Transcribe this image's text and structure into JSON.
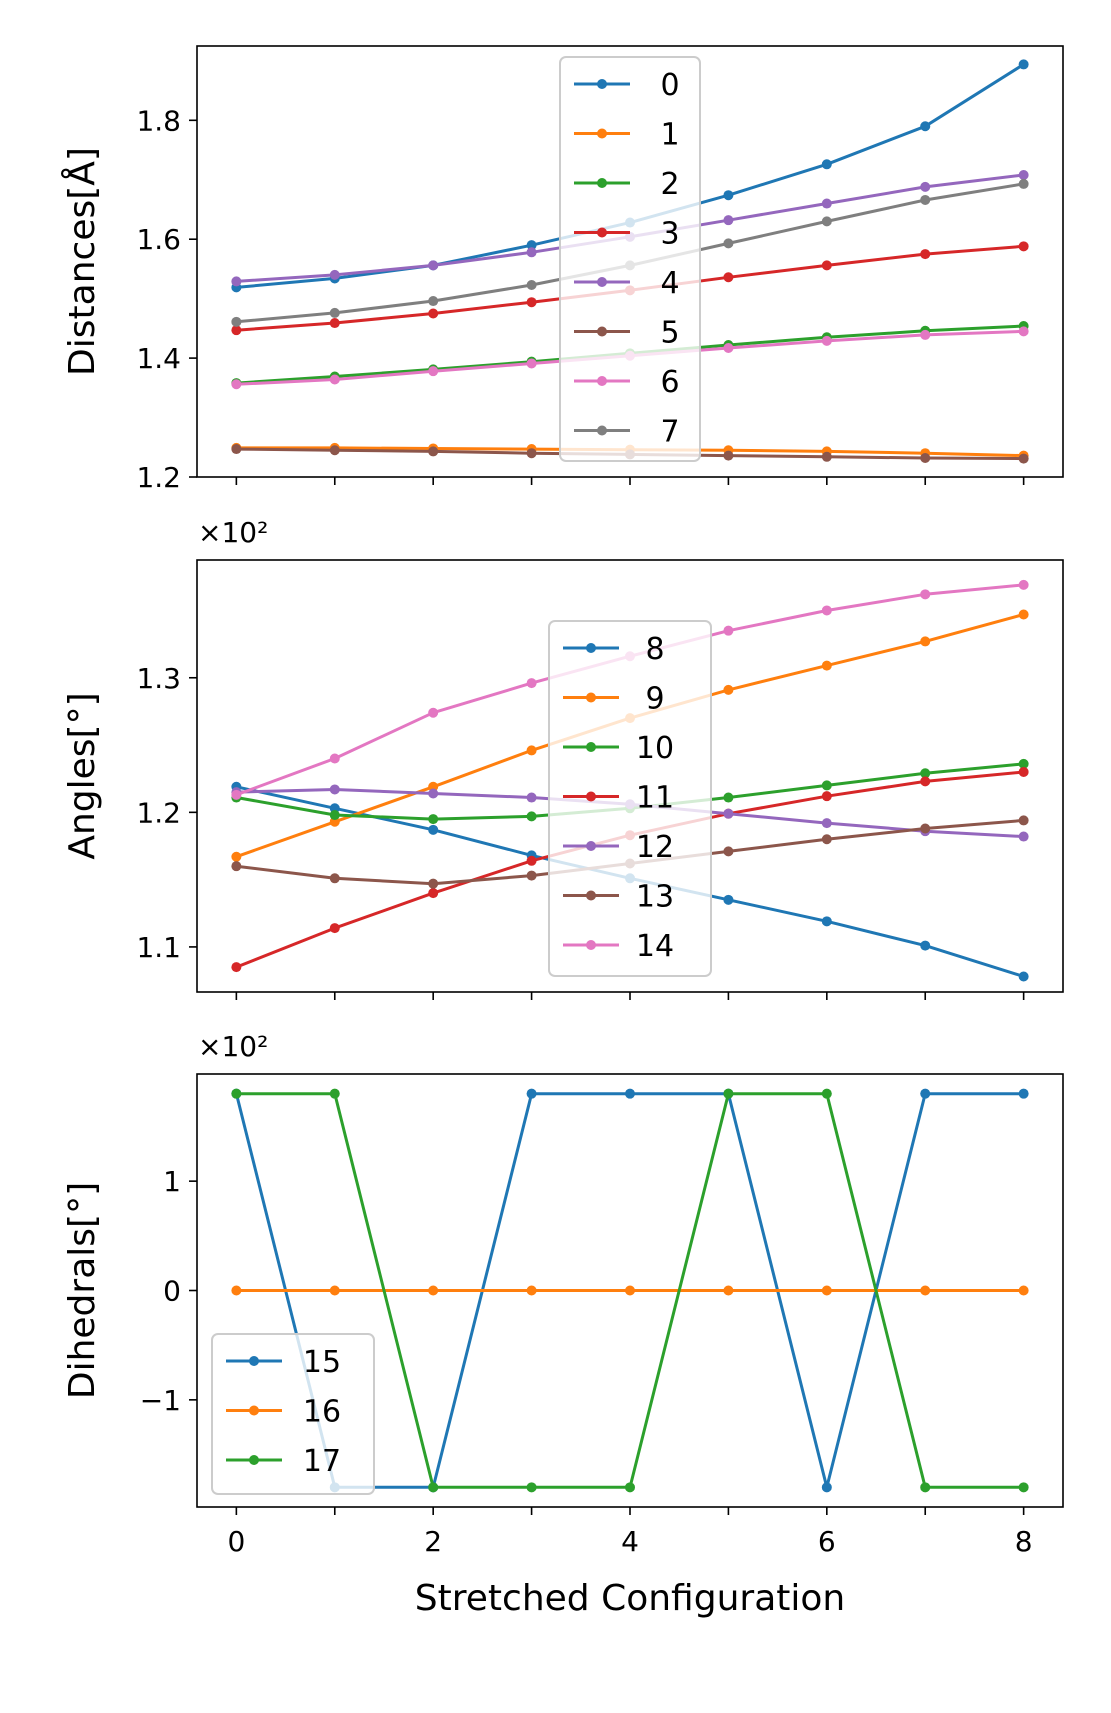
{
  "palette": [
    "#1f77b4",
    "#ff7f0e",
    "#2ca02c",
    "#d62728",
    "#9467bd",
    "#8c564b",
    "#e377c2",
    "#7f7f7f"
  ],
  "chart_data": [
    {
      "id": "distances",
      "type": "line",
      "title": "",
      "ylabel": "Distances[Å]",
      "xlabel": "",
      "scale_label": "",
      "x": [
        0,
        1,
        2,
        3,
        4,
        5,
        6,
        7,
        8
      ],
      "xlim": [
        -0.4,
        8.4
      ],
      "ylim": [
        1.2,
        1.925
      ],
      "yticks": [
        1.2,
        1.4,
        1.6,
        1.8
      ],
      "ytick_labels": [
        "1.2",
        "1.4",
        "1.6",
        "1.8"
      ],
      "show_xtick_labels": false,
      "legend_loc": "upper-center",
      "series": [
        {
          "name": "0",
          "color_index": 0,
          "values": [
            1.519,
            1.534,
            1.556,
            1.59,
            1.628,
            1.674,
            1.726,
            1.79,
            1.894
          ]
        },
        {
          "name": "1",
          "color_index": 1,
          "values": [
            1.249,
            1.249,
            1.248,
            1.247,
            1.246,
            1.245,
            1.243,
            1.24,
            1.236
          ]
        },
        {
          "name": "2",
          "color_index": 2,
          "values": [
            1.358,
            1.369,
            1.381,
            1.394,
            1.408,
            1.422,
            1.435,
            1.446,
            1.454
          ]
        },
        {
          "name": "3",
          "color_index": 3,
          "values": [
            1.447,
            1.459,
            1.475,
            1.494,
            1.514,
            1.536,
            1.556,
            1.575,
            1.588
          ]
        },
        {
          "name": "4",
          "color_index": 4,
          "values": [
            1.529,
            1.54,
            1.556,
            1.578,
            1.604,
            1.632,
            1.66,
            1.688,
            1.708
          ]
        },
        {
          "name": "5",
          "color_index": 5,
          "values": [
            1.247,
            1.245,
            1.243,
            1.24,
            1.238,
            1.236,
            1.234,
            1.232,
            1.231
          ]
        },
        {
          "name": "6",
          "color_index": 6,
          "values": [
            1.356,
            1.364,
            1.378,
            1.391,
            1.404,
            1.417,
            1.429,
            1.439,
            1.445
          ]
        },
        {
          "name": "7",
          "color_index": 7,
          "values": [
            1.461,
            1.476,
            1.496,
            1.523,
            1.556,
            1.593,
            1.63,
            1.666,
            1.693
          ]
        }
      ]
    },
    {
      "id": "angles",
      "type": "line",
      "title": "",
      "ylabel": "Angles[°]",
      "xlabel": "",
      "scale_label": "×10²",
      "x": [
        0,
        1,
        2,
        3,
        4,
        5,
        6,
        7,
        8
      ],
      "xlim": [
        -0.4,
        8.4
      ],
      "ylim": [
        1.0665,
        1.3875
      ],
      "yticks": [
        1.1,
        1.2,
        1.3
      ],
      "ytick_labels": [
        "1.1",
        "1.2",
        "1.3"
      ],
      "show_xtick_labels": false,
      "legend_loc": "center",
      "series": [
        {
          "name": "8",
          "color_index": 0,
          "values": [
            1.219,
            1.203,
            1.187,
            1.168,
            1.151,
            1.135,
            1.119,
            1.101,
            1.078
          ]
        },
        {
          "name": "9",
          "color_index": 1,
          "values": [
            1.167,
            1.193,
            1.219,
            1.246,
            1.27,
            1.291,
            1.309,
            1.327,
            1.347
          ]
        },
        {
          "name": "10",
          "color_index": 2,
          "values": [
            1.211,
            1.198,
            1.195,
            1.197,
            1.203,
            1.211,
            1.22,
            1.229,
            1.236
          ]
        },
        {
          "name": "11",
          "color_index": 3,
          "values": [
            1.085,
            1.114,
            1.14,
            1.164,
            1.183,
            1.199,
            1.212,
            1.223,
            1.23
          ]
        },
        {
          "name": "12",
          "color_index": 4,
          "values": [
            1.215,
            1.217,
            1.214,
            1.211,
            1.206,
            1.199,
            1.192,
            1.186,
            1.182
          ]
        },
        {
          "name": "13",
          "color_index": 5,
          "values": [
            1.16,
            1.151,
            1.147,
            1.153,
            1.162,
            1.171,
            1.18,
            1.188,
            1.194
          ]
        },
        {
          "name": "14",
          "color_index": 6,
          "values": [
            1.213,
            1.24,
            1.274,
            1.296,
            1.316,
            1.335,
            1.35,
            1.362,
            1.369
          ]
        }
      ]
    },
    {
      "id": "dihedrals",
      "type": "line",
      "title": "",
      "ylabel": "Dihedrals[°]",
      "xlabel": "Stretched Configuration",
      "scale_label": "×10²",
      "x": [
        0,
        1,
        2,
        3,
        4,
        5,
        6,
        7,
        8
      ],
      "xlim": [
        -0.4,
        8.4
      ],
      "ylim": [
        -1.98,
        1.98
      ],
      "yticks": [
        -1,
        0,
        1
      ],
      "ytick_labels": [
        "−1",
        "0",
        "1"
      ],
      "xticks": [
        0,
        2,
        4,
        6,
        8
      ],
      "xtick_labels": [
        "0",
        "2",
        "4",
        "6",
        "8"
      ],
      "show_xtick_labels": true,
      "legend_loc": "lower-left",
      "series": [
        {
          "name": "15",
          "color_index": 0,
          "values": [
            1.8,
            -1.8,
            -1.8,
            1.8,
            1.8,
            1.8,
            -1.8,
            1.8,
            1.8
          ]
        },
        {
          "name": "16",
          "color_index": 1,
          "values": [
            0,
            0,
            0,
            0,
            0,
            0,
            0,
            0,
            0
          ]
        },
        {
          "name": "17",
          "color_index": 2,
          "values": [
            1.8,
            1.8,
            -1.8,
            -1.8,
            -1.8,
            1.8,
            1.8,
            -1.8,
            -1.8
          ]
        }
      ]
    }
  ]
}
